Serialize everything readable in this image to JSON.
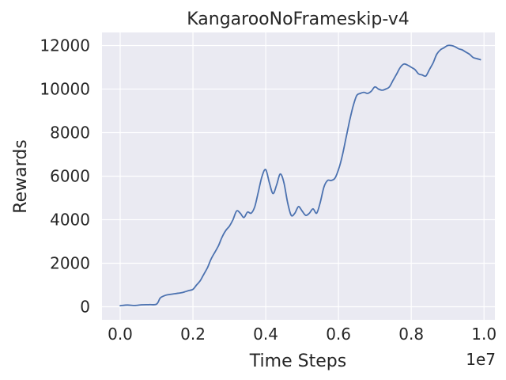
{
  "chart_data": {
    "type": "line",
    "title": "KangarooNoFrameskip-v4",
    "xlabel": "Time Steps",
    "ylabel": "Rewards",
    "x_offset_label": "1e7",
    "xlim": [
      -0.05,
      1.03
    ],
    "ylim": [
      -600,
      12600
    ],
    "x_ticks": [
      0.0,
      0.2,
      0.4,
      0.6,
      0.8,
      1.0
    ],
    "x_tick_labels": [
      "0.0",
      "0.2",
      "0.4",
      "0.6",
      "0.8",
      "1.0"
    ],
    "y_ticks": [
      0,
      2000,
      4000,
      6000,
      8000,
      10000,
      12000
    ],
    "y_tick_labels": [
      "0",
      "2000",
      "4000",
      "6000",
      "8000",
      "10000",
      "12000"
    ],
    "grid": true,
    "color": "#4c72b0",
    "series": [
      {
        "x": [
          0.0,
          0.02,
          0.04,
          0.06,
          0.08,
          0.1,
          0.11,
          0.12,
          0.13,
          0.15,
          0.17,
          0.18,
          0.19,
          0.2,
          0.21,
          0.22,
          0.23,
          0.24,
          0.25,
          0.26,
          0.27,
          0.28,
          0.29,
          0.3,
          0.31,
          0.32,
          0.33,
          0.34,
          0.35,
          0.36,
          0.37,
          0.38,
          0.39,
          0.4,
          0.41,
          0.42,
          0.43,
          0.44,
          0.45,
          0.46,
          0.47,
          0.48,
          0.49,
          0.5,
          0.51,
          0.52,
          0.53,
          0.54,
          0.55,
          0.56,
          0.57,
          0.58,
          0.59,
          0.6,
          0.61,
          0.62,
          0.63,
          0.64,
          0.65,
          0.66,
          0.67,
          0.68,
          0.69,
          0.7,
          0.71,
          0.72,
          0.73,
          0.74,
          0.75,
          0.76,
          0.77,
          0.78,
          0.79,
          0.8,
          0.81,
          0.82,
          0.83,
          0.84,
          0.85,
          0.86,
          0.87,
          0.88,
          0.89,
          0.9,
          0.91,
          0.92,
          0.93,
          0.94,
          0.95,
          0.96,
          0.97,
          0.98,
          0.99
        ],
        "y": [
          50,
          80,
          60,
          90,
          100,
          120,
          400,
          500,
          550,
          600,
          650,
          700,
          750,
          800,
          1000,
          1200,
          1500,
          1800,
          2200,
          2500,
          2800,
          3200,
          3500,
          3700,
          4000,
          4400,
          4300,
          4100,
          4350,
          4300,
          4600,
          5300,
          6000,
          6300,
          5700,
          5200,
          5600,
          6100,
          5700,
          4800,
          4200,
          4300,
          4600,
          4400,
          4200,
          4300,
          4500,
          4300,
          4800,
          5500,
          5800,
          5800,
          5900,
          6300,
          6900,
          7700,
          8500,
          9200,
          9700,
          9800,
          9850,
          9800,
          9900,
          10100,
          10000,
          9950,
          10000,
          10100,
          10400,
          10700,
          11000,
          11150,
          11100,
          11000,
          10900,
          10700,
          10650,
          10600,
          10900,
          11200,
          11600,
          11800,
          11900,
          12000,
          12000,
          11950,
          11850,
          11800,
          11700,
          11600,
          11450,
          11400,
          11350
        ]
      }
    ]
  }
}
